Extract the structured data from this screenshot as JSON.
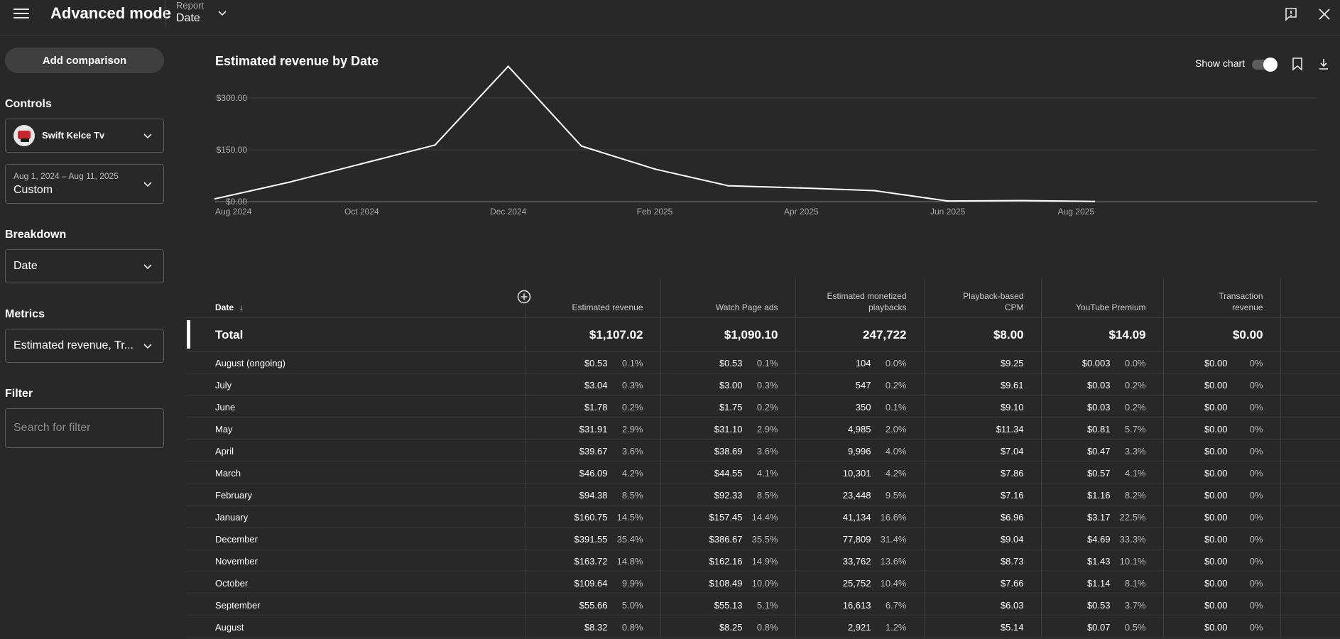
{
  "header": {
    "title": "Advanced mode",
    "report_label": "Report",
    "report_value": "Date"
  },
  "sidebar": {
    "add_comparison": "Add comparison",
    "controls_label": "Controls",
    "channel_name": "Swift Kelce Tv",
    "date_range": "Aug 1, 2024 – Aug 11, 2025",
    "date_preset": "Custom",
    "breakdown_label": "Breakdown",
    "breakdown_value": "Date",
    "metrics_label": "Metrics",
    "metrics_value": "Estimated revenue, Tr...",
    "filter_label": "Filter",
    "filter_placeholder": "Search for filter"
  },
  "chart_header": {
    "title": "Estimated revenue by Date",
    "show_chart_label": "Show chart"
  },
  "chart_data": {
    "type": "line",
    "title": "Estimated revenue by Date",
    "x_tick_labels": [
      "Aug 2024",
      "Oct 2024",
      "Dec 2024",
      "Feb 2025",
      "Apr 2025",
      "Jun 2025",
      "Aug 2025"
    ],
    "y_tick_labels": [
      "$0.00",
      "$150.00",
      "$300.00"
    ],
    "y_ticks": [
      0,
      150,
      300
    ],
    "ylim": [
      0,
      390
    ],
    "x": [
      "2024-08",
      "2024-09",
      "2024-10",
      "2024-11",
      "2024-12",
      "2025-01",
      "2025-02",
      "2025-03",
      "2025-04",
      "2025-05",
      "2025-06",
      "2025-07",
      "2025-08"
    ],
    "series": [
      {
        "values": [
          8.32,
          55.66,
          109.64,
          163.72,
          391.55,
          160.75,
          94.38,
          46.09,
          39.67,
          31.91,
          1.78,
          3.04,
          0.53
        ]
      }
    ],
    "grid": true,
    "legend": "none",
    "line_color": "#ffffff"
  },
  "table": {
    "columns": [
      {
        "label_lines": [
          "Date"
        ]
      },
      {
        "label_lines": [
          "Estimated revenue"
        ]
      },
      {
        "label_lines": [
          "Watch Page ads"
        ]
      },
      {
        "label_lines": [
          "Estimated monetized",
          "playbacks"
        ]
      },
      {
        "label_lines": [
          "Playback-based",
          "CPM"
        ]
      },
      {
        "label_lines": [
          "YouTube Premium"
        ]
      },
      {
        "label_lines": [
          "Transaction",
          "revenue"
        ]
      }
    ],
    "total": {
      "label": "Total",
      "cells": [
        "$1,107.02",
        "$1,090.10",
        "247,722",
        "$8.00",
        "$14.09",
        "$0.00"
      ]
    },
    "rows": [
      {
        "label": "August (ongoing)",
        "cells": [
          {
            "v": "$0.53",
            "p": "0.1%"
          },
          {
            "v": "$0.53",
            "p": "0.1%"
          },
          {
            "v": "104",
            "p": "0.0%"
          },
          {
            "v": "$9.25",
            "p": ""
          },
          {
            "v": "$0.003",
            "p": "0.0%"
          },
          {
            "v": "$0.00",
            "p": "0%"
          }
        ]
      },
      {
        "label": "July",
        "cells": [
          {
            "v": "$3.04",
            "p": "0.3%"
          },
          {
            "v": "$3.00",
            "p": "0.3%"
          },
          {
            "v": "547",
            "p": "0.2%"
          },
          {
            "v": "$9.61",
            "p": ""
          },
          {
            "v": "$0.03",
            "p": "0.2%"
          },
          {
            "v": "$0.00",
            "p": "0%"
          }
        ]
      },
      {
        "label": "June",
        "cells": [
          {
            "v": "$1.78",
            "p": "0.2%"
          },
          {
            "v": "$1.75",
            "p": "0.2%"
          },
          {
            "v": "350",
            "p": "0.1%"
          },
          {
            "v": "$9.10",
            "p": ""
          },
          {
            "v": "$0.03",
            "p": "0.2%"
          },
          {
            "v": "$0.00",
            "p": "0%"
          }
        ]
      },
      {
        "label": "May",
        "cells": [
          {
            "v": "$31.91",
            "p": "2.9%"
          },
          {
            "v": "$31.10",
            "p": "2.9%"
          },
          {
            "v": "4,985",
            "p": "2.0%"
          },
          {
            "v": "$11.34",
            "p": ""
          },
          {
            "v": "$0.81",
            "p": "5.7%"
          },
          {
            "v": "$0.00",
            "p": "0%"
          }
        ]
      },
      {
        "label": "April",
        "cells": [
          {
            "v": "$39.67",
            "p": "3.6%"
          },
          {
            "v": "$38.69",
            "p": "3.6%"
          },
          {
            "v": "9,996",
            "p": "4.0%"
          },
          {
            "v": "$7.04",
            "p": ""
          },
          {
            "v": "$0.47",
            "p": "3.3%"
          },
          {
            "v": "$0.00",
            "p": "0%"
          }
        ]
      },
      {
        "label": "March",
        "cells": [
          {
            "v": "$46.09",
            "p": "4.2%"
          },
          {
            "v": "$44.55",
            "p": "4.1%"
          },
          {
            "v": "10,301",
            "p": "4.2%"
          },
          {
            "v": "$7.86",
            "p": ""
          },
          {
            "v": "$0.57",
            "p": "4.1%"
          },
          {
            "v": "$0.00",
            "p": "0%"
          }
        ]
      },
      {
        "label": "February",
        "cells": [
          {
            "v": "$94.38",
            "p": "8.5%"
          },
          {
            "v": "$92.33",
            "p": "8.5%"
          },
          {
            "v": "23,448",
            "p": "9.5%"
          },
          {
            "v": "$7.16",
            "p": ""
          },
          {
            "v": "$1.16",
            "p": "8.2%"
          },
          {
            "v": "$0.00",
            "p": "0%"
          }
        ]
      },
      {
        "label": "January",
        "cells": [
          {
            "v": "$160.75",
            "p": "14.5%"
          },
          {
            "v": "$157.45",
            "p": "14.4%"
          },
          {
            "v": "41,134",
            "p": "16.6%"
          },
          {
            "v": "$6.96",
            "p": ""
          },
          {
            "v": "$3.17",
            "p": "22.5%"
          },
          {
            "v": "$0.00",
            "p": "0%"
          }
        ]
      },
      {
        "label": "December",
        "cells": [
          {
            "v": "$391.55",
            "p": "35.4%"
          },
          {
            "v": "$386.67",
            "p": "35.5%"
          },
          {
            "v": "77,809",
            "p": "31.4%"
          },
          {
            "v": "$9.04",
            "p": ""
          },
          {
            "v": "$4.69",
            "p": "33.3%"
          },
          {
            "v": "$0.00",
            "p": "0%"
          }
        ]
      },
      {
        "label": "November",
        "cells": [
          {
            "v": "$163.72",
            "p": "14.8%"
          },
          {
            "v": "$162.16",
            "p": "14.9%"
          },
          {
            "v": "33,762",
            "p": "13.6%"
          },
          {
            "v": "$8.73",
            "p": ""
          },
          {
            "v": "$1.43",
            "p": "10.1%"
          },
          {
            "v": "$0.00",
            "p": "0%"
          }
        ]
      },
      {
        "label": "October",
        "cells": [
          {
            "v": "$109.64",
            "p": "9.9%"
          },
          {
            "v": "$108.49",
            "p": "10.0%"
          },
          {
            "v": "25,752",
            "p": "10.4%"
          },
          {
            "v": "$7.66",
            "p": ""
          },
          {
            "v": "$1.14",
            "p": "8.1%"
          },
          {
            "v": "$0.00",
            "p": "0%"
          }
        ]
      },
      {
        "label": "September",
        "cells": [
          {
            "v": "$55.66",
            "p": "5.0%"
          },
          {
            "v": "$55.13",
            "p": "5.1%"
          },
          {
            "v": "16,613",
            "p": "6.7%"
          },
          {
            "v": "$6.03",
            "p": ""
          },
          {
            "v": "$0.53",
            "p": "3.7%"
          },
          {
            "v": "$0.00",
            "p": "0%"
          }
        ]
      },
      {
        "label": "August",
        "cells": [
          {
            "v": "$8.32",
            "p": "0.8%"
          },
          {
            "v": "$8.25",
            "p": "0.8%"
          },
          {
            "v": "2,921",
            "p": "1.2%"
          },
          {
            "v": "$5.14",
            "p": ""
          },
          {
            "v": "$0.07",
            "p": "0.5%"
          },
          {
            "v": "$0.00",
            "p": "0%"
          }
        ]
      }
    ]
  },
  "icons": {
    "menu": "hamburger-menu-icon",
    "report_dropdown": "chevron-down-icon",
    "feedback": "feedback-icon",
    "close": "close-icon",
    "bookmark": "bookmark-icon",
    "download": "download-icon",
    "add_column": "plus-circle-icon",
    "sort": "arrow-down-icon"
  },
  "colors": {
    "background": "#282828",
    "text": "#f1f1f1",
    "chart_line": "#ffffff",
    "grid": "#3e3e3e"
  }
}
